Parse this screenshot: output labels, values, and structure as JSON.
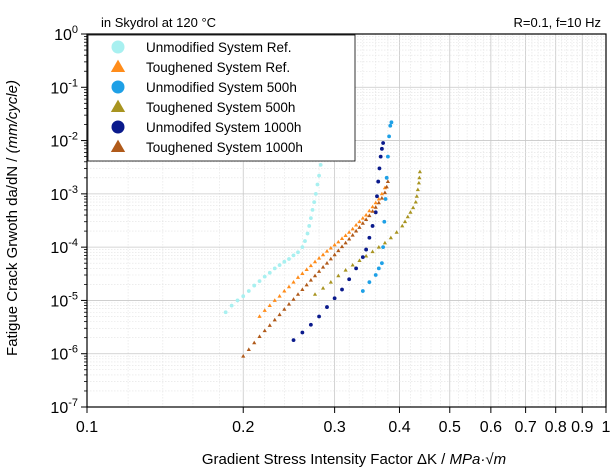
{
  "chart_data": {
    "type": "scatter",
    "title": "",
    "xlabel_main": "Gradient Stress Intensity Factor ΔK / ",
    "xlabel_italic": "MPa·√m",
    "ylabel_main": "Fatigue Crack Grwoth da/dN / ",
    "ylabel_italic": "(mm/cycle)",
    "annotation_left": "in Skydrol at 120 °C",
    "annotation_right": "R=0.1, f=10 Hz",
    "x_scale": "log",
    "y_scale": "log",
    "xlim": [
      0.1,
      1.0
    ],
    "ylim": [
      1e-07,
      1
    ],
    "grid": true,
    "legend_position": "top-left",
    "x_tick_labels": [
      {
        "value": 0.1,
        "label": "0.1"
      },
      {
        "value": 0.2,
        "label": "0.2"
      },
      {
        "value": 0.3,
        "label": "0.3"
      },
      {
        "value": 0.4,
        "label": "0.4"
      },
      {
        "value": 0.5,
        "label": "0.5"
      },
      {
        "value": 0.6,
        "label": "0.6"
      },
      {
        "value": 0.7,
        "label": "0.7"
      },
      {
        "value": 0.8,
        "label": "0.8"
      },
      {
        "value": 0.9,
        "label": "0.9"
      },
      {
        "value": 1.0,
        "label": "1"
      }
    ],
    "y_tick_labels": [
      {
        "exp": -7,
        "base": "10",
        "sup": "-7"
      },
      {
        "exp": -6,
        "base": "10",
        "sup": "-6"
      },
      {
        "exp": -5,
        "base": "10",
        "sup": "-5"
      },
      {
        "exp": -4,
        "base": "10",
        "sup": "-4"
      },
      {
        "exp": -3,
        "base": "10",
        "sup": "-3"
      },
      {
        "exp": -2,
        "base": "10",
        "sup": "-2"
      },
      {
        "exp": -1,
        "base": "10",
        "sup": "-1"
      },
      {
        "exp": 0,
        "base": "10",
        "sup": "0"
      }
    ],
    "series": [
      {
        "name": "Unmodified System Ref.",
        "marker": "circle",
        "color": "#A8F0F0",
        "points": [
          [
            0.185,
            6e-06
          ],
          [
            0.19,
            8e-06
          ],
          [
            0.195,
            1e-05
          ],
          [
            0.2,
            1.2e-05
          ],
          [
            0.205,
            1.5e-05
          ],
          [
            0.21,
            1.9e-05
          ],
          [
            0.215,
            2.3e-05
          ],
          [
            0.22,
            2.8e-05
          ],
          [
            0.225,
            3.3e-05
          ],
          [
            0.23,
            4e-05
          ],
          [
            0.235,
            4.6e-05
          ],
          [
            0.24,
            5.3e-05
          ],
          [
            0.245,
            6e-05
          ],
          [
            0.25,
            7e-05
          ],
          [
            0.255,
            8e-05
          ],
          [
            0.26,
            0.0001
          ],
          [
            0.263,
            0.00013
          ],
          [
            0.266,
            0.00018
          ],
          [
            0.268,
            0.00025
          ],
          [
            0.27,
            0.00035
          ],
          [
            0.272,
            0.0005
          ],
          [
            0.274,
            0.0007
          ],
          [
            0.276,
            0.001
          ],
          [
            0.278,
            0.0015
          ],
          [
            0.28,
            0.0022
          ],
          [
            0.282,
            0.0035
          ],
          [
            0.283,
            0.006
          ],
          [
            0.284,
            0.009
          ]
        ]
      },
      {
        "name": "Toughened System Ref.",
        "marker": "triangle",
        "color": "#FF8C1A",
        "points": [
          [
            0.215,
            5e-06
          ],
          [
            0.22,
            6.5e-06
          ],
          [
            0.225,
            8e-06
          ],
          [
            0.23,
            1e-05
          ],
          [
            0.235,
            1.2e-05
          ],
          [
            0.24,
            1.5e-05
          ],
          [
            0.245,
            1.8e-05
          ],
          [
            0.25,
            2.2e-05
          ],
          [
            0.255,
            2.7e-05
          ],
          [
            0.26,
            3.2e-05
          ],
          [
            0.265,
            3.8e-05
          ],
          [
            0.27,
            4.5e-05
          ],
          [
            0.275,
            5.3e-05
          ],
          [
            0.28,
            6.2e-05
          ],
          [
            0.285,
            7.2e-05
          ],
          [
            0.29,
            8.4e-05
          ],
          [
            0.295,
            9.6e-05
          ],
          [
            0.3,
            0.00011
          ],
          [
            0.305,
            0.000125
          ],
          [
            0.31,
            0.000145
          ],
          [
            0.315,
            0.000165
          ],
          [
            0.32,
            0.00019
          ],
          [
            0.325,
            0.00022
          ],
          [
            0.33,
            0.00026
          ],
          [
            0.335,
            0.0003
          ],
          [
            0.34,
            0.00035
          ],
          [
            0.345,
            0.0004
          ],
          [
            0.35,
            0.00048
          ],
          [
            0.355,
            0.00057
          ],
          [
            0.36,
            0.00068
          ],
          [
            0.365,
            0.0008
          ],
          [
            0.37,
            0.001
          ],
          [
            0.375,
            0.0013
          ]
        ]
      },
      {
        "name": "Unmodified System 500h",
        "marker": "circle",
        "color": "#1EA0E6",
        "points": [
          [
            0.34,
            1.5e-05
          ],
          [
            0.35,
            2.2e-05
          ],
          [
            0.36,
            3e-05
          ],
          [
            0.365,
            4e-05
          ],
          [
            0.37,
            5e-05
          ],
          [
            0.372,
            0.0001
          ],
          [
            0.374,
            0.0003
          ],
          [
            0.376,
            0.0008
          ],
          [
            0.378,
            0.002
          ],
          [
            0.38,
            0.005
          ],
          [
            0.382,
            0.012
          ],
          [
            0.384,
            0.019
          ],
          [
            0.386,
            0.022
          ]
        ]
      },
      {
        "name": "Toughened System 500h",
        "marker": "triangle",
        "color": "#A89420",
        "points": [
          [
            0.275,
            1.3e-05
          ],
          [
            0.285,
            1.7e-05
          ],
          [
            0.295,
            2.2e-05
          ],
          [
            0.305,
            2.9e-05
          ],
          [
            0.315,
            3.7e-05
          ],
          [
            0.325,
            4.6e-05
          ],
          [
            0.335,
            5.6e-05
          ],
          [
            0.345,
            6.8e-05
          ],
          [
            0.355,
            8.2e-05
          ],
          [
            0.365,
            0.0001
          ],
          [
            0.375,
            0.00012
          ],
          [
            0.385,
            0.00015
          ],
          [
            0.395,
            0.00019
          ],
          [
            0.405,
            0.00025
          ],
          [
            0.41,
            0.0003
          ],
          [
            0.415,
            0.00037
          ],
          [
            0.42,
            0.00045
          ],
          [
            0.425,
            0.00055
          ],
          [
            0.43,
            0.0007
          ],
          [
            0.432,
            0.0009
          ],
          [
            0.434,
            0.0012
          ],
          [
            0.436,
            0.0016
          ],
          [
            0.437,
            0.002
          ],
          [
            0.438,
            0.0026
          ]
        ]
      },
      {
        "name": "Unmodifed System 1000h",
        "marker": "circle",
        "color": "#0A1A8C",
        "points": [
          [
            0.25,
            1.8e-06
          ],
          [
            0.26,
            2.5e-06
          ],
          [
            0.27,
            3.5e-06
          ],
          [
            0.28,
            5e-06
          ],
          [
            0.29,
            7.5e-06
          ],
          [
            0.3,
            1.1e-05
          ],
          [
            0.31,
            1.6e-05
          ],
          [
            0.32,
            2.5e-05
          ],
          [
            0.33,
            4e-05
          ],
          [
            0.34,
            6.5e-05
          ],
          [
            0.345,
            9e-05
          ],
          [
            0.35,
            0.00015
          ],
          [
            0.355,
            0.00025
          ],
          [
            0.36,
            0.00045
          ],
          [
            0.362,
            0.0009
          ],
          [
            0.364,
            0.0017
          ],
          [
            0.366,
            0.003
          ],
          [
            0.368,
            0.005
          ],
          [
            0.37,
            0.007
          ],
          [
            0.372,
            0.009
          ]
        ]
      },
      {
        "name": "Toughened System 1000h",
        "marker": "triangle",
        "color": "#B05A1A",
        "points": [
          [
            0.2,
            9e-07
          ],
          [
            0.205,
            1.2e-06
          ],
          [
            0.21,
            1.6e-06
          ],
          [
            0.215,
            2.1e-06
          ],
          [
            0.22,
            2.7e-06
          ],
          [
            0.225,
            3.4e-06
          ],
          [
            0.23,
            4.3e-06
          ],
          [
            0.235,
            5.4e-06
          ],
          [
            0.24,
            6.8e-06
          ],
          [
            0.245,
            8.5e-06
          ],
          [
            0.25,
            1.05e-05
          ],
          [
            0.255,
            1.3e-05
          ],
          [
            0.26,
            1.6e-05
          ],
          [
            0.265,
            1.95e-05
          ],
          [
            0.27,
            2.4e-05
          ],
          [
            0.275,
            2.9e-05
          ],
          [
            0.28,
            3.5e-05
          ],
          [
            0.285,
            4.2e-05
          ],
          [
            0.29,
            5e-05
          ],
          [
            0.295,
            6e-05
          ],
          [
            0.3,
            7.2e-05
          ],
          [
            0.305,
            8.6e-05
          ],
          [
            0.31,
            0.000102
          ],
          [
            0.315,
            0.00012
          ],
          [
            0.32,
            0.000142
          ],
          [
            0.325,
            0.000168
          ],
          [
            0.33,
            0.0002
          ],
          [
            0.335,
            0.000235
          ],
          [
            0.34,
            0.00028
          ],
          [
            0.345,
            0.00033
          ],
          [
            0.35,
            0.00039
          ],
          [
            0.355,
            0.00047
          ],
          [
            0.36,
            0.00056
          ],
          [
            0.365,
            0.00068
          ],
          [
            0.37,
            0.00083
          ],
          [
            0.375,
            0.00105
          ],
          [
            0.378,
            0.00135
          ],
          [
            0.38,
            0.0017
          ]
        ]
      }
    ]
  }
}
